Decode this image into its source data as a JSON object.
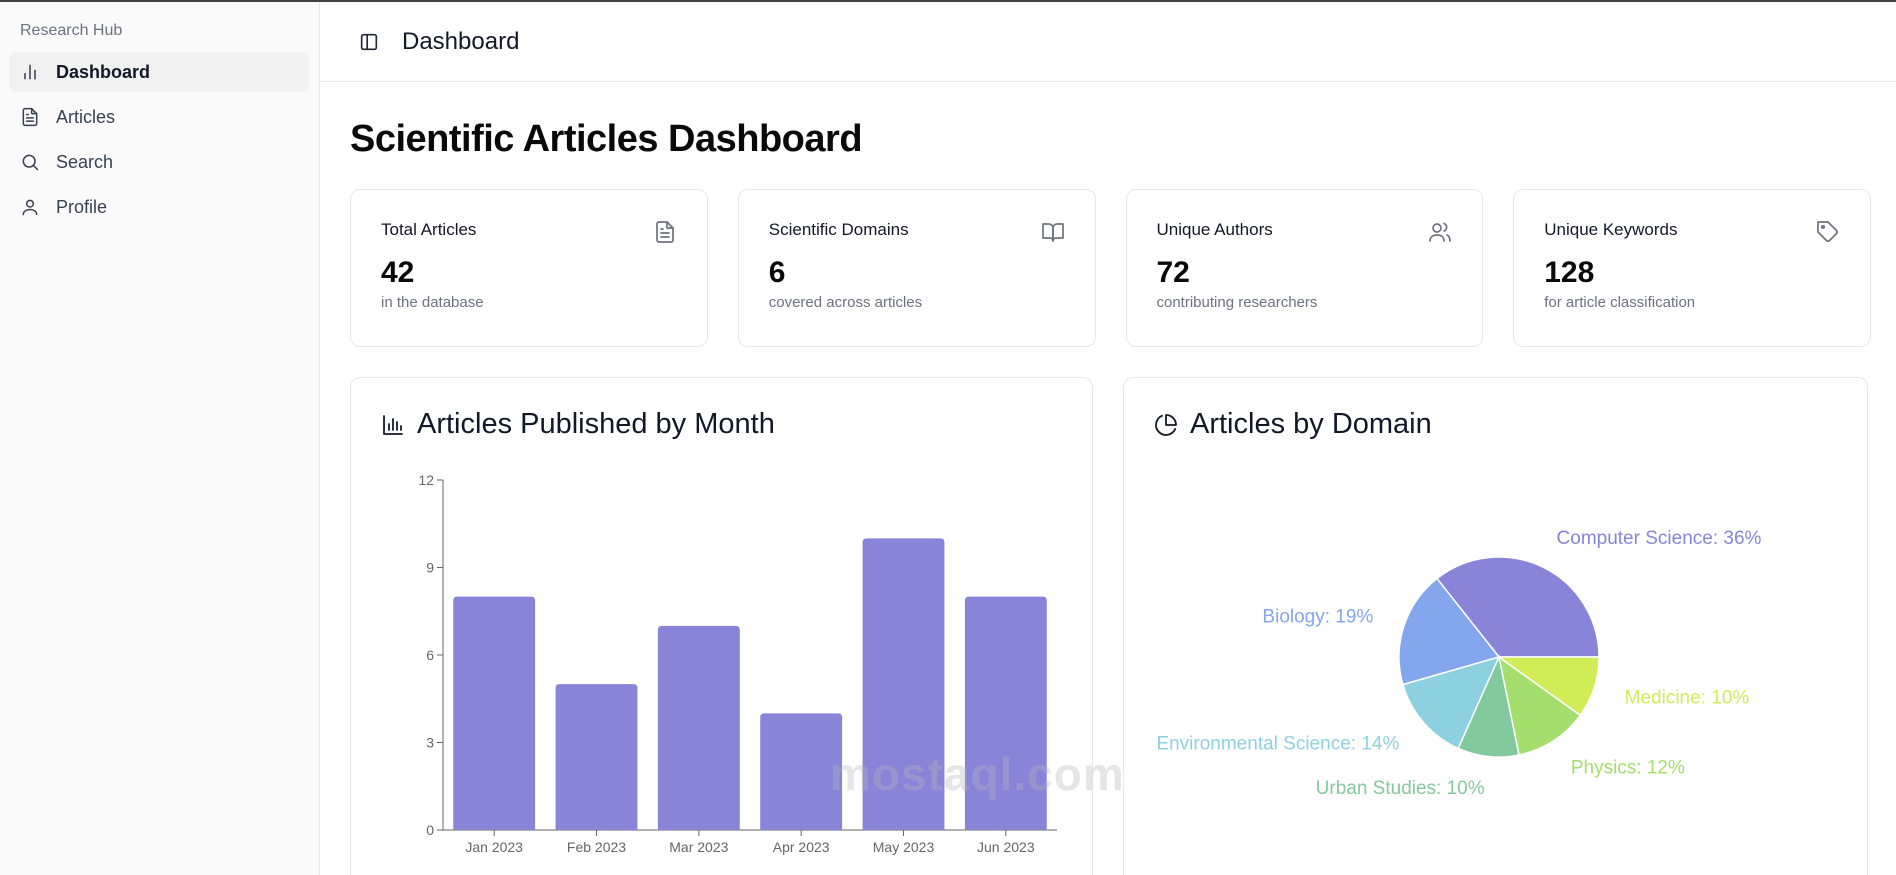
{
  "sidebar": {
    "brand": "Research Hub",
    "items": [
      {
        "label": "Dashboard",
        "icon": "bar-chart-icon",
        "active": true
      },
      {
        "label": "Articles",
        "icon": "file-text-icon",
        "active": false
      },
      {
        "label": "Search",
        "icon": "search-icon",
        "active": false
      },
      {
        "label": "Profile",
        "icon": "user-icon",
        "active": false
      }
    ]
  },
  "topbar": {
    "title": "Dashboard",
    "toggle_icon": "sidebar-toggle-icon"
  },
  "page": {
    "title": "Scientific Articles Dashboard"
  },
  "stats": [
    {
      "label": "Total Articles",
      "value": "42",
      "sub": "in the database",
      "icon": "file-text-icon"
    },
    {
      "label": "Scientific Domains",
      "value": "6",
      "sub": "covered across articles",
      "icon": "book-open-icon"
    },
    {
      "label": "Unique Authors",
      "value": "72",
      "sub": "contributing researchers",
      "icon": "users-icon"
    },
    {
      "label": "Unique Keywords",
      "value": "128",
      "sub": "for article classification",
      "icon": "tag-icon"
    }
  ],
  "charts": {
    "bar_title": "Articles Published by Month",
    "pie_title": "Articles by Domain"
  },
  "watermark": "mostaql.com",
  "chart_data": [
    {
      "type": "bar",
      "title": "Articles Published by Month",
      "categories": [
        "Jan 2023",
        "Feb 2023",
        "Mar 2023",
        "Apr 2023",
        "May 2023",
        "Jun 2023"
      ],
      "values": [
        8,
        5,
        7,
        4,
        10,
        8
      ],
      "ylim": [
        0,
        12
      ],
      "yticks": [
        0,
        3,
        6,
        9,
        12
      ],
      "color": "#8884d8",
      "grid": false
    },
    {
      "type": "pie",
      "title": "Articles by Domain",
      "slices": [
        {
          "label": "Computer Science",
          "percent": 36,
          "color": "#8884d8"
        },
        {
          "label": "Biology",
          "percent": 19,
          "color": "#83a6ed"
        },
        {
          "label": "Environmental Science",
          "percent": 14,
          "color": "#8dd1e1"
        },
        {
          "label": "Urban Studies",
          "percent": 10,
          "color": "#82ca9d"
        },
        {
          "label": "Physics",
          "percent": 12,
          "color": "#a4de6c"
        },
        {
          "label": "Medicine",
          "percent": 10,
          "color": "#d0ed57"
        }
      ]
    }
  ]
}
